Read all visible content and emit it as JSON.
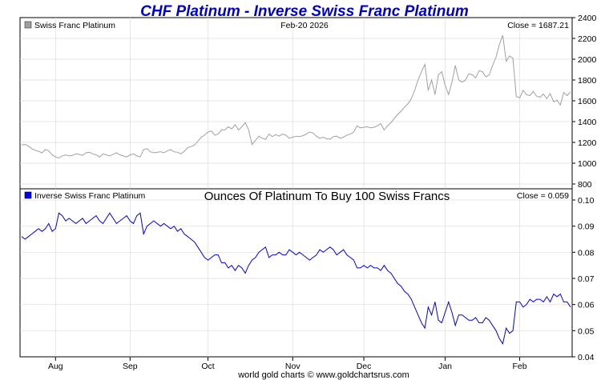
{
  "chart_data": [
    {
      "type": "line",
      "title": "CHF Platinum - Inverse Swiss Franc Platinum",
      "date_label": "Feb-20  2026",
      "legend": "Swiss Franc Platinum",
      "close_label": "Close = 1687.21",
      "series": [
        {
          "name": "Swiss Franc Platinum",
          "color": "#a0a0a0",
          "values": [
            1175,
            1180,
            1165,
            1140,
            1125,
            1115,
            1100,
            1130,
            1120,
            1080,
            1060,
            1050,
            1070,
            1080,
            1070,
            1075,
            1090,
            1085,
            1075,
            1100,
            1105,
            1090,
            1080,
            1060,
            1090,
            1080,
            1070,
            1085,
            1100,
            1080,
            1070,
            1060,
            1080,
            1090,
            1070,
            1060,
            1130,
            1140,
            1110,
            1100,
            1105,
            1110,
            1100,
            1120,
            1130,
            1110,
            1105,
            1090,
            1115,
            1150,
            1160,
            1175,
            1210,
            1250,
            1270,
            1300,
            1310,
            1270,
            1280,
            1320,
            1320,
            1350,
            1330,
            1370,
            1320,
            1350,
            1390,
            1320,
            1180,
            1220,
            1260,
            1240,
            1230,
            1280,
            1255,
            1275,
            1260,
            1280,
            1270,
            1240,
            1250,
            1260,
            1255,
            1265,
            1280,
            1300,
            1290,
            1260,
            1240,
            1250,
            1235,
            1230,
            1255,
            1260,
            1240,
            1250,
            1270,
            1280,
            1300,
            1360,
            1340,
            1345,
            1350,
            1340,
            1345,
            1360,
            1380,
            1320,
            1360,
            1390,
            1430,
            1470,
            1500,
            1540,
            1570,
            1620,
            1700,
            1800,
            1880,
            1950,
            1700,
            1800,
            1660,
            1850,
            1880,
            1750,
            1660,
            1780,
            1940,
            1800,
            1780,
            1800,
            1860,
            1850,
            1820,
            1890,
            1880,
            1830,
            1850,
            1940,
            2020,
            2140,
            2230,
            1980,
            2030,
            2010,
            1640,
            1630,
            1700,
            1660,
            1650,
            1690,
            1645,
            1635,
            1665,
            1620,
            1670,
            1590,
            1605,
            1560,
            1680,
            1650,
            1687.21
          ]
        }
      ],
      "y_ticks": [
        "2400",
        "2200",
        "2000",
        "1800",
        "1600",
        "1400",
        "1200",
        "1000",
        "800"
      ],
      "ylim": [
        800,
        2400
      ]
    },
    {
      "type": "line",
      "title": "Ounces Of Platinum To Buy 100 Swiss Francs",
      "legend": "Inverse Swiss Franc Platinum",
      "close_label": "Close = 0.059",
      "series": [
        {
          "name": "Inverse Swiss Franc Platinum",
          "color": "#0000ee",
          "values": [
            0.086,
            0.085,
            0.086,
            0.087,
            0.088,
            0.089,
            0.088,
            0.089,
            0.091,
            0.088,
            0.089,
            0.095,
            0.094,
            0.092,
            0.093,
            0.092,
            0.091,
            0.092,
            0.093,
            0.091,
            0.092,
            0.093,
            0.094,
            0.092,
            0.091,
            0.093,
            0.095,
            0.093,
            0.091,
            0.092,
            0.093,
            0.094,
            0.092,
            0.091,
            0.094,
            0.095,
            0.087,
            0.09,
            0.091,
            0.092,
            0.091,
            0.09,
            0.091,
            0.09,
            0.089,
            0.09,
            0.088,
            0.089,
            0.087,
            0.086,
            0.085,
            0.084,
            0.082,
            0.08,
            0.078,
            0.077,
            0.078,
            0.079,
            0.079,
            0.076,
            0.076,
            0.074,
            0.075,
            0.073,
            0.075,
            0.074,
            0.072,
            0.075,
            0.077,
            0.078,
            0.08,
            0.081,
            0.082,
            0.078,
            0.079,
            0.079,
            0.08,
            0.079,
            0.079,
            0.081,
            0.08,
            0.079,
            0.08,
            0.079,
            0.078,
            0.077,
            0.078,
            0.079,
            0.081,
            0.08,
            0.081,
            0.082,
            0.081,
            0.079,
            0.08,
            0.081,
            0.079,
            0.078,
            0.077,
            0.074,
            0.074,
            0.075,
            0.074,
            0.075,
            0.074,
            0.074,
            0.073,
            0.075,
            0.073,
            0.072,
            0.07,
            0.068,
            0.067,
            0.065,
            0.064,
            0.062,
            0.059,
            0.056,
            0.053,
            0.051,
            0.059,
            0.056,
            0.061,
            0.054,
            0.053,
            0.057,
            0.061,
            0.057,
            0.052,
            0.056,
            0.056,
            0.055,
            0.054,
            0.054,
            0.055,
            0.053,
            0.053,
            0.055,
            0.054,
            0.052,
            0.05,
            0.047,
            0.045,
            0.051,
            0.049,
            0.05,
            0.061,
            0.061,
            0.059,
            0.06,
            0.062,
            0.061,
            0.062,
            0.062,
            0.061,
            0.063,
            0.061,
            0.064,
            0.063,
            0.064,
            0.061,
            0.061,
            0.059
          ]
        }
      ],
      "y_ticks": [
        "0.10",
        "0.09",
        "0.08",
        "0.07",
        "0.06",
        "0.05",
        "0.04"
      ],
      "ylim": [
        0.04,
        0.1
      ]
    }
  ],
  "x_axis": {
    "months": [
      "Aug",
      "Sep",
      "Oct",
      "Nov",
      "Dec",
      "Jan",
      "Feb"
    ],
    "month_index": [
      10,
      32,
      55,
      80,
      101,
      125,
      147
    ]
  },
  "footer": "world gold charts © www.goldchartsrus.com",
  "colors": {
    "title": "#0000cc",
    "frame": "#000000",
    "grid": "#dddddd"
  }
}
